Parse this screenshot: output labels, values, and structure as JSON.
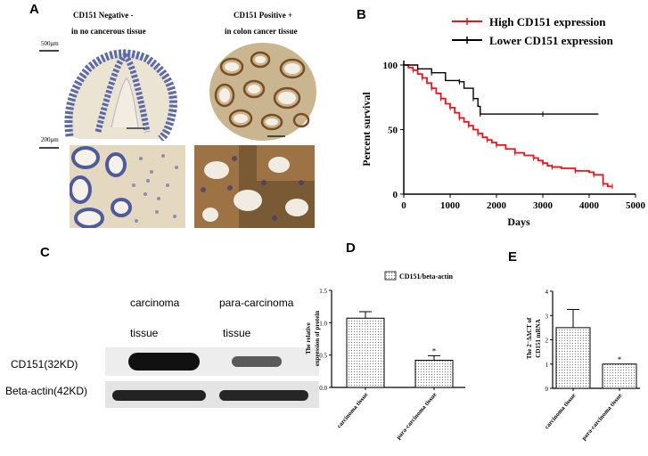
{
  "panels": {
    "a": "A",
    "b": "B",
    "c": "C",
    "d": "D",
    "e": "E"
  },
  "panel_a": {
    "neg_caption_1": "CD151 Negative -",
    "neg_caption_2": "in no cancerous tissue",
    "pos_caption_1": "CD151 Positive +",
    "pos_caption_2": "in colon cancer tissue",
    "scale_top": "500μm",
    "scale_bottom": "200μm",
    "colors": {
      "negative_stain": "#5c6aa8",
      "positive_stain": "#9b6a35",
      "background": "#ece4d2"
    }
  },
  "panel_c": {
    "col1_line1": "carcinoma",
    "col1_line2": "tissue",
    "col2_line1": "para-carcinoma",
    "col2_line2": "tissue",
    "row1": "CD151(32KD)",
    "row2": "Beta-actin(42KD)"
  },
  "chart_data": [
    {
      "type": "line",
      "id": "B",
      "xlabel": "Days",
      "ylabel": "Percent survival",
      "xlim": [
        0,
        5000
      ],
      "ylim": [
        0,
        100
      ],
      "xticks": [
        0,
        1000,
        2000,
        3000,
        4000,
        5000
      ],
      "yticks": [
        0,
        50,
        100
      ],
      "legend": "top-right",
      "series": [
        {
          "name": "High CD151 expression",
          "color": "#e8141b",
          "points": [
            [
              0,
              100
            ],
            [
              100,
              98
            ],
            [
              200,
              96
            ],
            [
              300,
              93
            ],
            [
              400,
              90
            ],
            [
              500,
              86
            ],
            [
              600,
              82
            ],
            [
              700,
              78
            ],
            [
              800,
              74
            ],
            [
              900,
              70
            ],
            [
              1000,
              67
            ],
            [
              1100,
              63
            ],
            [
              1200,
              59
            ],
            [
              1300,
              56
            ],
            [
              1400,
              53
            ],
            [
              1500,
              50
            ],
            [
              1600,
              47
            ],
            [
              1700,
              44
            ],
            [
              1800,
              42
            ],
            [
              1900,
              40
            ],
            [
              2000,
              38
            ],
            [
              2200,
              35
            ],
            [
              2400,
              32
            ],
            [
              2600,
              30
            ],
            [
              2800,
              28
            ],
            [
              2900,
              26
            ],
            [
              3000,
              24
            ],
            [
              3100,
              22
            ],
            [
              3200,
              21
            ],
            [
              3400,
              20
            ],
            [
              3700,
              18
            ],
            [
              4000,
              17
            ],
            [
              4100,
              15
            ],
            [
              4200,
              15
            ],
            [
              4300,
              8
            ],
            [
              4400,
              6
            ],
            [
              4500,
              6
            ]
          ]
        },
        {
          "name": "Lower CD151 expression",
          "color": "#000000",
          "points": [
            [
              0,
              100
            ],
            [
              300,
              97
            ],
            [
              600,
              94
            ],
            [
              900,
              88
            ],
            [
              1200,
              87
            ],
            [
              1300,
              82
            ],
            [
              1500,
              74
            ],
            [
              1600,
              68
            ],
            [
              1650,
              62
            ],
            [
              2000,
              62
            ],
            [
              3000,
              62
            ],
            [
              4200,
              62
            ]
          ]
        }
      ]
    },
    {
      "type": "bar",
      "id": "D",
      "legend_label": "CD151/beta-actin",
      "ylabel": "The relative expression of protein",
      "categories": [
        "carcinoma tissue",
        "para-carcinoma tissue"
      ],
      "values": [
        1.07,
        0.42
      ],
      "errors": [
        0.1,
        0.07
      ],
      "ylim": [
        0,
        1.5
      ],
      "yticks": [
        0.0,
        0.5,
        1.0,
        1.5
      ],
      "annotations": [
        "",
        "*"
      ]
    },
    {
      "type": "bar",
      "id": "E",
      "ylabel": "The 2^-ΔΔCT of CD151 mRNA",
      "ylabel_line1": "The 2⁻ΔΔCT of",
      "ylabel_line2": "CD151 mRNA",
      "categories": [
        "carcinoma tissue",
        "para-carcinoma tissue"
      ],
      "values": [
        2.5,
        1.0
      ],
      "errors": [
        0.75,
        0
      ],
      "ylim": [
        0,
        4
      ],
      "yticks": [
        0,
        1,
        2,
        3,
        4
      ],
      "annotations": [
        "",
        "*"
      ]
    }
  ]
}
